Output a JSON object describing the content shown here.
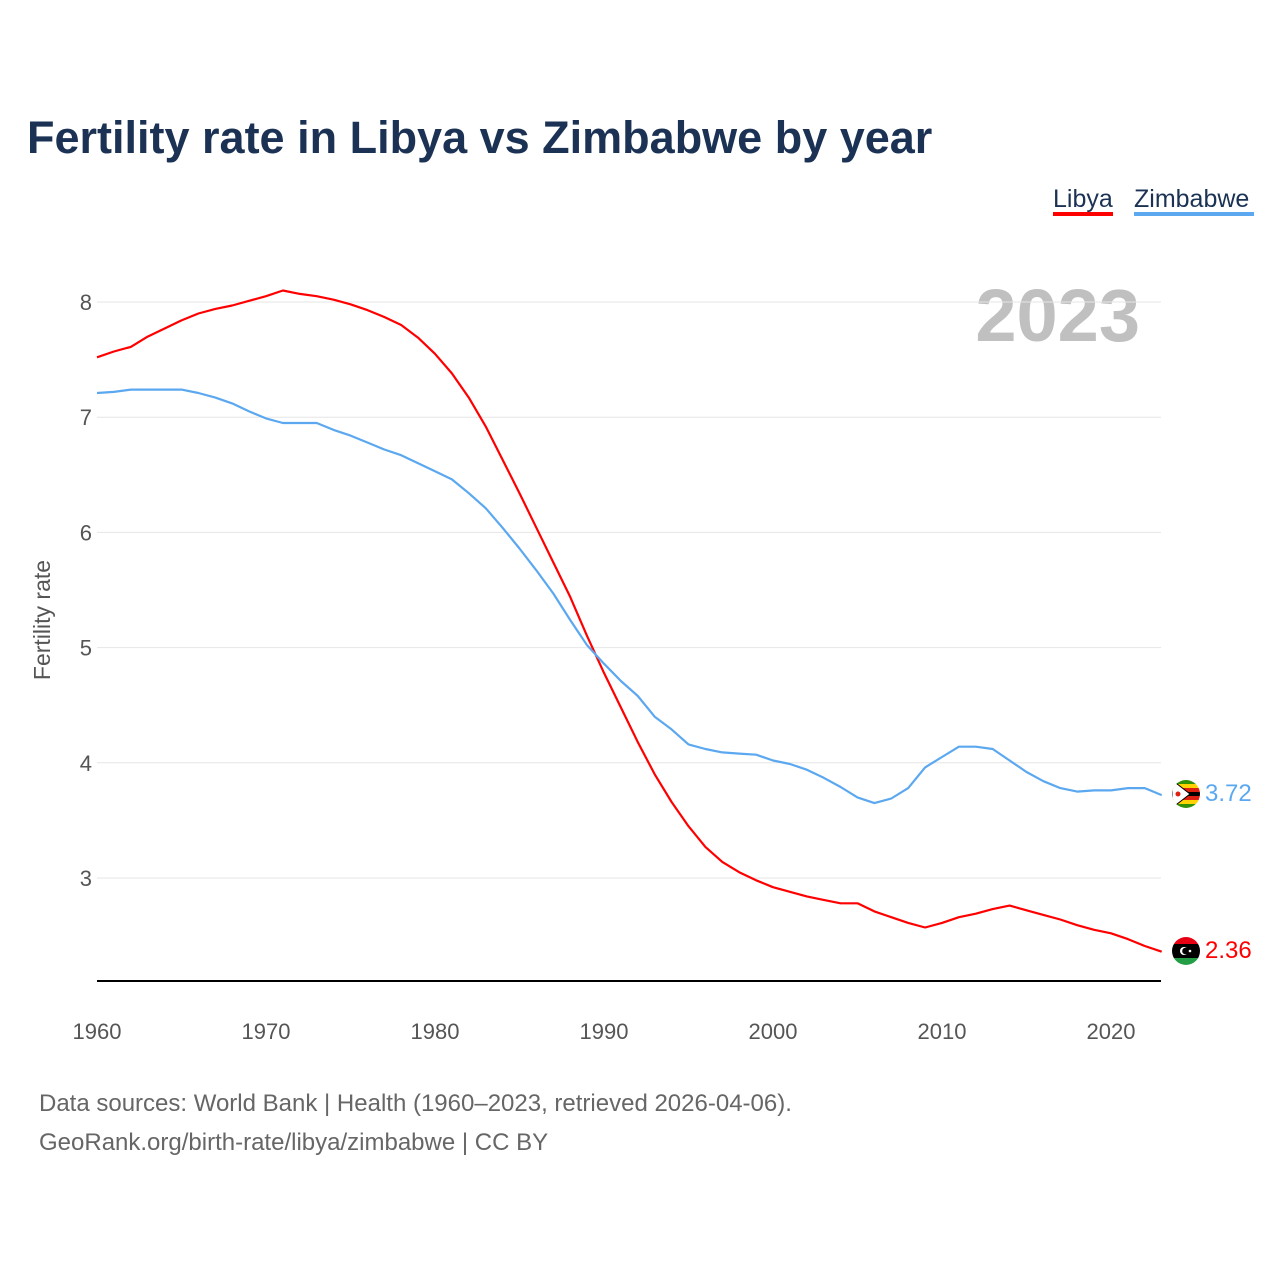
{
  "chart_data": {
    "type": "line",
    "title": "Fertility rate in Libya vs Zimbabwe by year",
    "xlabel": "",
    "ylabel": "Fertility rate",
    "xlim": [
      1960,
      2023
    ],
    "ylim": [
      2.1,
      8.3
    ],
    "x_ticks": [
      "1960",
      "1970",
      "1980",
      "1990",
      "2000",
      "2010",
      "2020"
    ],
    "y_ticks": [
      "3",
      "4",
      "5",
      "6",
      "7",
      "8"
    ],
    "grid": true,
    "legend_position": "top-right",
    "year_label": "2023",
    "x": [
      1960,
      1961,
      1962,
      1963,
      1964,
      1965,
      1966,
      1967,
      1968,
      1969,
      1970,
      1971,
      1972,
      1973,
      1974,
      1975,
      1976,
      1977,
      1978,
      1979,
      1980,
      1981,
      1982,
      1983,
      1984,
      1985,
      1986,
      1987,
      1988,
      1989,
      1990,
      1991,
      1992,
      1993,
      1994,
      1995,
      1996,
      1997,
      1998,
      1999,
      2000,
      2001,
      2002,
      2003,
      2004,
      2005,
      2006,
      2007,
      2008,
      2009,
      2010,
      2011,
      2012,
      2013,
      2014,
      2015,
      2016,
      2017,
      2018,
      2019,
      2020,
      2021,
      2022,
      2023
    ],
    "series": [
      {
        "name": "Libya",
        "color": "#ff0000",
        "end_label": "2.36",
        "flag": "libya-flag",
        "values": [
          7.52,
          7.57,
          7.61,
          7.7,
          7.77,
          7.84,
          7.9,
          7.94,
          7.97,
          8.01,
          8.05,
          8.1,
          8.07,
          8.05,
          8.02,
          7.98,
          7.93,
          7.87,
          7.8,
          7.69,
          7.55,
          7.38,
          7.17,
          6.92,
          6.63,
          6.34,
          6.04,
          5.74,
          5.44,
          5.1,
          4.78,
          4.48,
          4.18,
          3.9,
          3.66,
          3.45,
          3.27,
          3.14,
          3.05,
          2.98,
          2.92,
          2.88,
          2.84,
          2.81,
          2.78,
          2.78,
          2.71,
          2.66,
          2.61,
          2.57,
          2.61,
          2.66,
          2.69,
          2.73,
          2.76,
          2.72,
          2.68,
          2.64,
          2.59,
          2.55,
          2.52,
          2.47,
          2.41,
          2.36
        ]
      },
      {
        "name": "Zimbabwe",
        "color": "#5ba8f0",
        "end_label": "3.72",
        "flag": "zimbabwe-flag",
        "values": [
          7.21,
          7.22,
          7.24,
          7.24,
          7.24,
          7.24,
          7.21,
          7.17,
          7.12,
          7.05,
          6.99,
          6.95,
          6.95,
          6.95,
          6.89,
          6.84,
          6.78,
          6.72,
          6.67,
          6.6,
          6.53,
          6.46,
          6.34,
          6.21,
          6.04,
          5.86,
          5.67,
          5.47,
          5.24,
          5.02,
          4.86,
          4.71,
          4.58,
          4.4,
          4.29,
          4.16,
          4.12,
          4.09,
          4.08,
          4.07,
          4.02,
          3.99,
          3.94,
          3.87,
          3.79,
          3.7,
          3.65,
          3.69,
          3.78,
          3.96,
          4.05,
          4.14,
          4.14,
          4.12,
          4.02,
          3.92,
          3.84,
          3.78,
          3.75,
          3.76,
          3.76,
          3.78,
          3.78,
          3.72
        ]
      }
    ]
  },
  "footer": {
    "line1": "Data sources: World Bank | Health (1960–2023, retrieved 2026-04-06).",
    "line2": "GeoRank.org/birth-rate/libya/zimbabwe | CC BY"
  }
}
